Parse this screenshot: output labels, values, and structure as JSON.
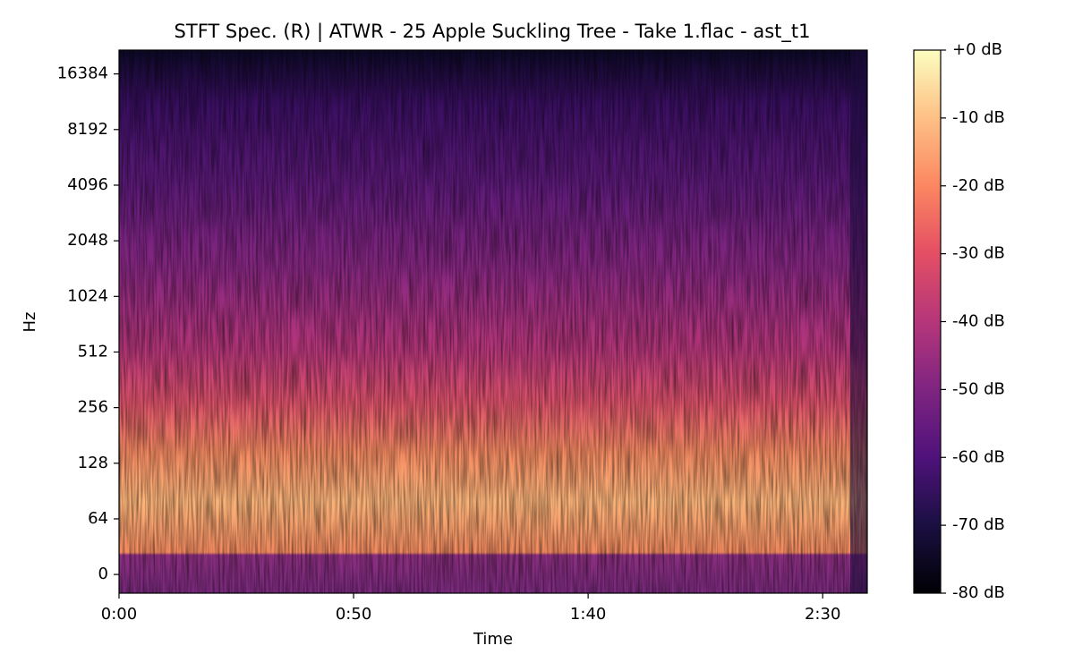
{
  "chart_data": {
    "type": "spectrogram",
    "title": "STFT Spec. (R) | ATWR - 25 Apple Suckling Tree - Take 1.flac - ast_t1",
    "xlabel": "Time",
    "ylabel": "Hz",
    "xlim": [
      0,
      159.5
    ],
    "xticks": [
      {
        "value": 0,
        "label": "0:00"
      },
      {
        "value": 50,
        "label": "0:50"
      },
      {
        "value": 100,
        "label": "1:40"
      },
      {
        "value": 150,
        "label": "2:30"
      }
    ],
    "ylim": [
      -21.5,
      22050
    ],
    "yscale": "symlog",
    "linthresh": 64,
    "base": 2,
    "yticks": [
      0,
      64,
      128,
      256,
      512,
      1024,
      2048,
      4096,
      8192,
      16384
    ],
    "colorbar": {
      "clim": [
        -80,
        0
      ],
      "colormap": "magma",
      "ticks": [
        {
          "value": 0,
          "label": "+0 dB"
        },
        {
          "value": -10,
          "label": "-10 dB"
        },
        {
          "value": -20,
          "label": "-20 dB"
        },
        {
          "value": -30,
          "label": "-30 dB"
        },
        {
          "value": -40,
          "label": "-40 dB"
        },
        {
          "value": -50,
          "label": "-50 dB"
        },
        {
          "value": -60,
          "label": "-60 dB"
        },
        {
          "value": -70,
          "label": "-70 dB"
        },
        {
          "value": -80,
          "label": "-80 dB"
        }
      ]
    }
  }
}
